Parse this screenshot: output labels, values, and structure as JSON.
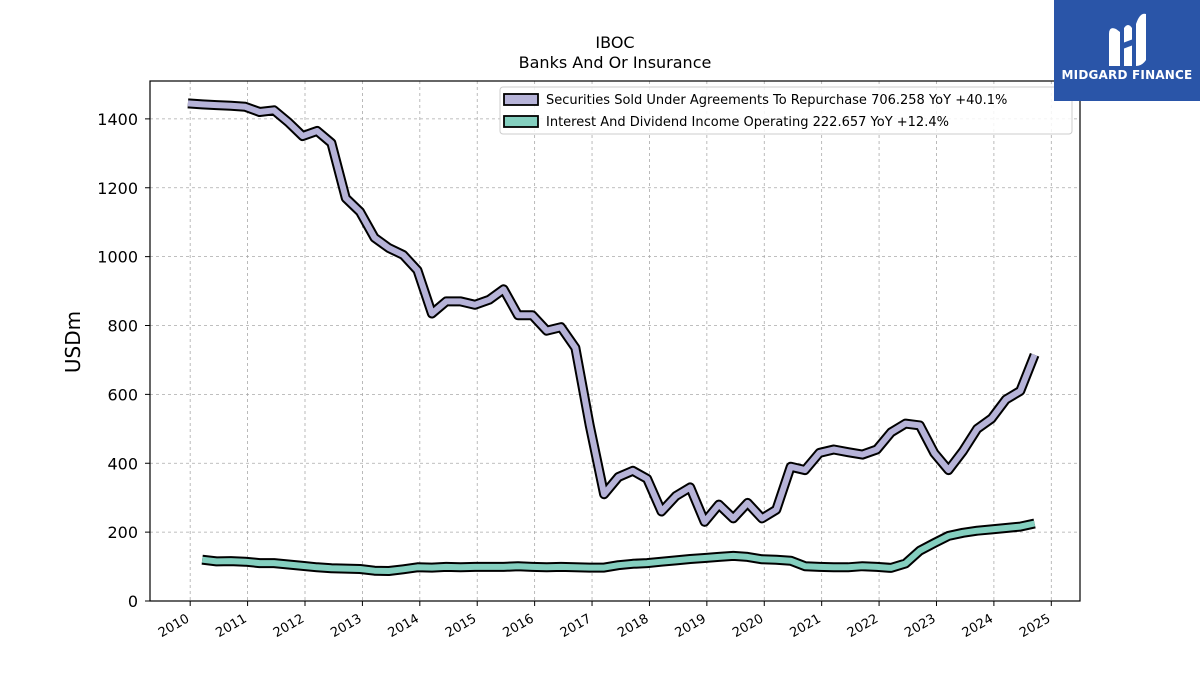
{
  "chart_data": {
    "type": "line",
    "title": "IBOC",
    "subtitle": "Banks And Or Insurance",
    "xlabel": "",
    "ylabel": "USDm",
    "xlim": [
      2009.3,
      2025.5
    ],
    "ylim": [
      0,
      1510
    ],
    "x_ticks": [
      2010,
      2011,
      2012,
      2013,
      2014,
      2015,
      2016,
      2017,
      2018,
      2019,
      2020,
      2021,
      2022,
      2023,
      2024,
      2025
    ],
    "y_ticks": [
      0,
      200,
      400,
      600,
      800,
      1000,
      1200,
      1400
    ],
    "grid": true,
    "legend_position": "top-right",
    "series": [
      {
        "name": "Securities Sold Under Agreements To Repurchase",
        "legend_label": "Securities Sold Under Agreements To Repurchase  706.258 YoY +40.1%",
        "color": "#b6b3d8",
        "x": [
          2009.96,
          2010.21,
          2010.46,
          2010.71,
          2010.96,
          2011.21,
          2011.46,
          2011.71,
          2011.96,
          2012.21,
          2012.46,
          2012.71,
          2012.96,
          2013.21,
          2013.46,
          2013.71,
          2013.96,
          2014.21,
          2014.46,
          2014.71,
          2014.96,
          2015.21,
          2015.46,
          2015.71,
          2015.96,
          2016.21,
          2016.46,
          2016.71,
          2016.96,
          2017.21,
          2017.46,
          2017.71,
          2017.96,
          2018.21,
          2018.46,
          2018.71,
          2018.96,
          2019.21,
          2019.46,
          2019.71,
          2019.96,
          2020.21,
          2020.46,
          2020.71,
          2020.96,
          2021.21,
          2021.46,
          2021.71,
          2021.96,
          2022.21,
          2022.46,
          2022.71,
          2022.96,
          2023.21,
          2023.46,
          2023.71,
          2023.96,
          2024.21,
          2024.46,
          2024.71
        ],
        "values": [
          1445,
          1442,
          1440,
          1438,
          1435,
          1420,
          1425,
          1390,
          1350,
          1365,
          1330,
          1170,
          1130,
          1055,
          1025,
          1005,
          960,
          835,
          870,
          870,
          860,
          875,
          905,
          830,
          830,
          785,
          795,
          735,
          510,
          310,
          360,
          378,
          355,
          260,
          305,
          330,
          230,
          280,
          240,
          285,
          240,
          265,
          390,
          380,
          430,
          440,
          432,
          425,
          440,
          490,
          515,
          510,
          430,
          380,
          435,
          500,
          530,
          585,
          610,
          715
        ]
      },
      {
        "name": "Interest And Dividend Income Operating",
        "legend_label": "Interest And Dividend Income Operating  222.657 YoY +12.4%",
        "color": "#84cfbf",
        "x": [
          2010.21,
          2010.46,
          2010.71,
          2010.96,
          2011.21,
          2011.46,
          2011.71,
          2011.96,
          2012.21,
          2012.46,
          2012.71,
          2012.96,
          2013.21,
          2013.46,
          2013.71,
          2013.96,
          2014.21,
          2014.46,
          2014.71,
          2014.96,
          2015.21,
          2015.46,
          2015.71,
          2015.96,
          2016.21,
          2016.46,
          2016.71,
          2016.96,
          2017.21,
          2017.46,
          2017.71,
          2017.96,
          2018.21,
          2018.46,
          2018.71,
          2018.96,
          2019.21,
          2019.46,
          2019.71,
          2019.96,
          2020.21,
          2020.46,
          2020.71,
          2020.96,
          2021.21,
          2021.46,
          2021.71,
          2021.96,
          2022.21,
          2022.46,
          2022.71,
          2022.96,
          2023.21,
          2023.46,
          2023.71,
          2023.96,
          2024.21,
          2024.46,
          2024.71
        ],
        "values": [
          120,
          115,
          116,
          114,
          110,
          110,
          106,
          102,
          98,
          95,
          94,
          93,
          88,
          87,
          92,
          98,
          97,
          99,
          98,
          99,
          99,
          99,
          101,
          99,
          98,
          99,
          98,
          97,
          97,
          104,
          108,
          110,
          114,
          118,
          122,
          125,
          128,
          131,
          128,
          121,
          120,
          117,
          101,
          99,
          98,
          98,
          101,
          99,
          96,
          109,
          146,
          168,
          189,
          198,
          204,
          208,
          212,
          216,
          225
        ]
      }
    ]
  },
  "logo": {
    "text": "MIDGARD FINANCE"
  }
}
